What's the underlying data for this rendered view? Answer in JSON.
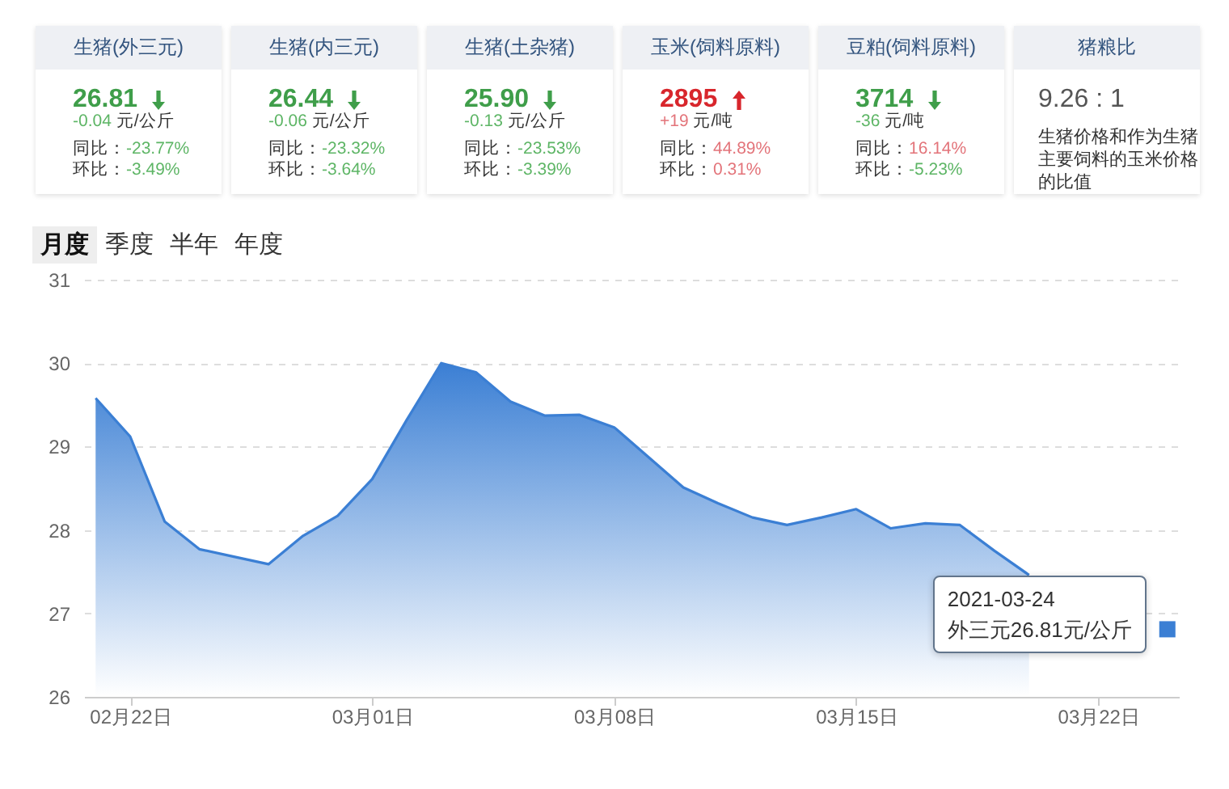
{
  "chart_data": [
    {
      "type": "other",
      "title": "生猪(外三元)",
      "annotations": [
        "26.81",
        "-0.04 元/公斤",
        "同比：-23.77%",
        "环比：-3.49%"
      ]
    },
    {
      "type": "other",
      "title": "生猪(内三元)",
      "annotations": [
        "26.44",
        "-0.06 元/公斤",
        "同比：-23.32%",
        "环比：-3.64%"
      ]
    },
    {
      "type": "other",
      "title": "生猪(土杂猪)",
      "annotations": [
        "25.90",
        "-0.13 元/公斤",
        "同比：-23.53%",
        "环比：-3.39%"
      ]
    },
    {
      "type": "other",
      "title": "玉米(饲料原料)",
      "annotations": [
        "2895",
        "+19 元/吨",
        "同比：44.89%",
        "环比：0.31%"
      ]
    },
    {
      "type": "other",
      "title": "豆粕(饲料原料)",
      "annotations": [
        "3714",
        "-36 元/吨",
        "同比：16.14%",
        "环比：-5.23%"
      ]
    },
    {
      "type": "other",
      "title": "猪粮比",
      "annotations": [
        "9.26 : 1",
        "生猪价格和作为生猪主要饲料的玉米价格的比值"
      ]
    },
    {
      "type": "area",
      "x": [
        "2021-02-21",
        "2021-02-22",
        "2021-02-23",
        "2021-02-24",
        "2021-02-25",
        "2021-02-26",
        "2021-02-27",
        "2021-02-28",
        "2021-03-01",
        "2021-03-02",
        "2021-03-03",
        "2021-03-04",
        "2021-03-05",
        "2021-03-06",
        "2021-03-07",
        "2021-03-08",
        "2021-03-09",
        "2021-03-10",
        "2021-03-11",
        "2021-03-12",
        "2021-03-13",
        "2021-03-14",
        "2021-03-15",
        "2021-03-16",
        "2021-03-17",
        "2021-03-18",
        "2021-03-19",
        "2021-03-20"
      ],
      "series": [
        {
          "color": "#3b7fd4",
          "values": [
            29.58,
            29.12,
            28.1,
            27.77,
            27.68,
            27.59,
            27.93,
            28.17,
            28.61,
            29.32,
            30.0,
            29.89,
            29.54,
            29.37,
            29.38,
            29.23,
            28.87,
            28.51,
            28.32,
            28.15,
            28.06,
            28.15,
            28.25,
            28.02,
            28.08,
            28.06,
            27.75,
            27.46
          ]
        }
      ],
      "xlim": [
        "2021-02-20T16:00",
        "2021-03-24T08:00"
      ],
      "xticks": [
        {
          "value": "2021-02-22",
          "label": "02月22日"
        },
        {
          "value": "2021-03-01",
          "label": "03月01日"
        },
        {
          "value": "2021-03-08",
          "label": "03月08日"
        },
        {
          "value": "2021-03-15",
          "label": "03月15日"
        },
        {
          "value": "2021-03-22",
          "label": "03月22日"
        }
      ],
      "ylim": [
        26,
        31
      ],
      "yticks": [
        26,
        27,
        28,
        29,
        30,
        31
      ],
      "grid": "y",
      "annotations": [
        "月度",
        "季度",
        "半年",
        "年度",
        {
          "text": "2021-03-24\n外三元26.81元/公斤",
          "x": "2021-03-24",
          "y": 26.81
        }
      ]
    }
  ]
}
